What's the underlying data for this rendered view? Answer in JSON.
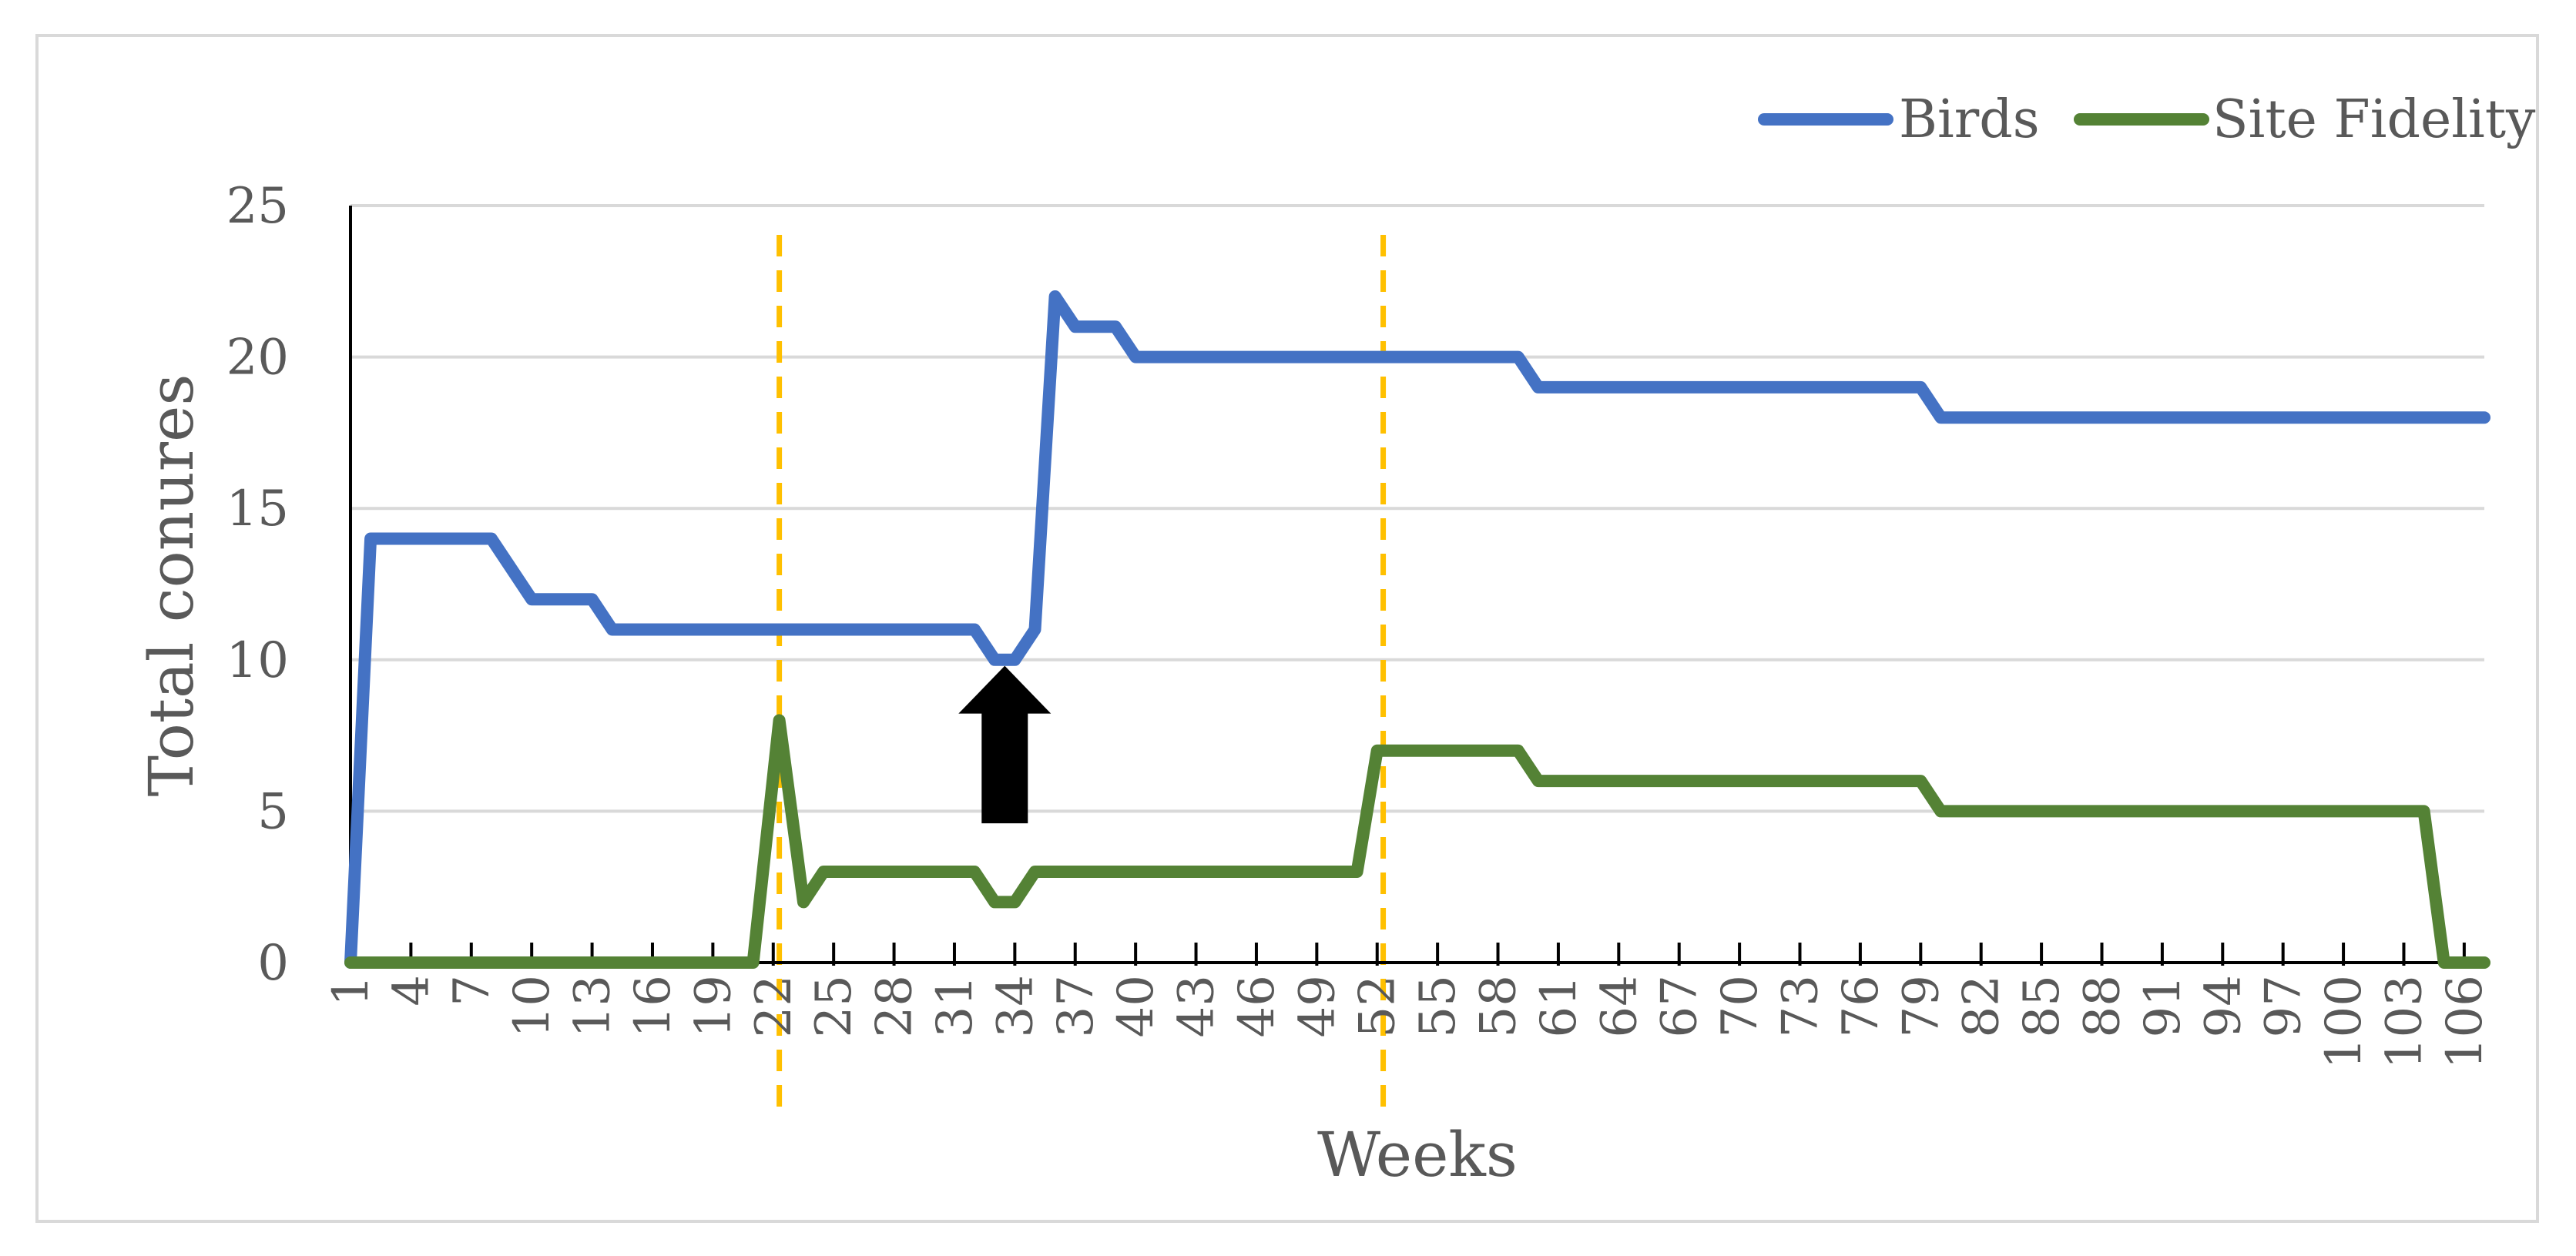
{
  "chart_data": {
    "type": "line",
    "xlabel": "Weeks",
    "ylabel": "Total conures",
    "ylim": [
      0,
      25
    ],
    "yticks": [
      0,
      5,
      10,
      15,
      20,
      25
    ],
    "xlim": [
      1,
      107
    ],
    "xticks": [
      1,
      4,
      7,
      10,
      13,
      16,
      19,
      22,
      25,
      28,
      31,
      34,
      37,
      40,
      43,
      46,
      49,
      52,
      55,
      58,
      61,
      64,
      67,
      70,
      73,
      76,
      79,
      82,
      85,
      88,
      91,
      94,
      97,
      100,
      103,
      106
    ],
    "grid": "horizontal",
    "legend_position": "top-right",
    "series": [
      {
        "name": "Birds",
        "color": "#4472C4",
        "points": [
          [
            1,
            0
          ],
          [
            2,
            14
          ],
          [
            8,
            14
          ],
          [
            10,
            12
          ],
          [
            13,
            12
          ],
          [
            14,
            11
          ],
          [
            32,
            11
          ],
          [
            33,
            10
          ],
          [
            34,
            10
          ],
          [
            35,
            11
          ],
          [
            36,
            22
          ],
          [
            37,
            21
          ],
          [
            39,
            21
          ],
          [
            40,
            20
          ],
          [
            59,
            20
          ],
          [
            60,
            19
          ],
          [
            79,
            19
          ],
          [
            80,
            18
          ],
          [
            107,
            18
          ]
        ]
      },
      {
        "name": "Site Fidelity",
        "color": "#548235",
        "points": [
          [
            1,
            0
          ],
          [
            21,
            0
          ],
          [
            22.3,
            8
          ],
          [
            23.5,
            2
          ],
          [
            24.5,
            3
          ],
          [
            32,
            3
          ],
          [
            33,
            2
          ],
          [
            34,
            2
          ],
          [
            35,
            3
          ],
          [
            51,
            3
          ],
          [
            52,
            7
          ],
          [
            59,
            7
          ],
          [
            60,
            6
          ],
          [
            79,
            6
          ],
          [
            80,
            5
          ],
          [
            104,
            5
          ],
          [
            105,
            0
          ],
          [
            107,
            0
          ]
        ]
      }
    ],
    "annotations": [
      {
        "type": "vline",
        "x": 22.3,
        "color": "#FFC000"
      },
      {
        "type": "vline",
        "x": 52.3,
        "color": "#FFC000"
      },
      {
        "type": "arrow",
        "x": 33.5,
        "y": 4.6,
        "y_tip": 9.8,
        "color": "#000000"
      }
    ]
  }
}
